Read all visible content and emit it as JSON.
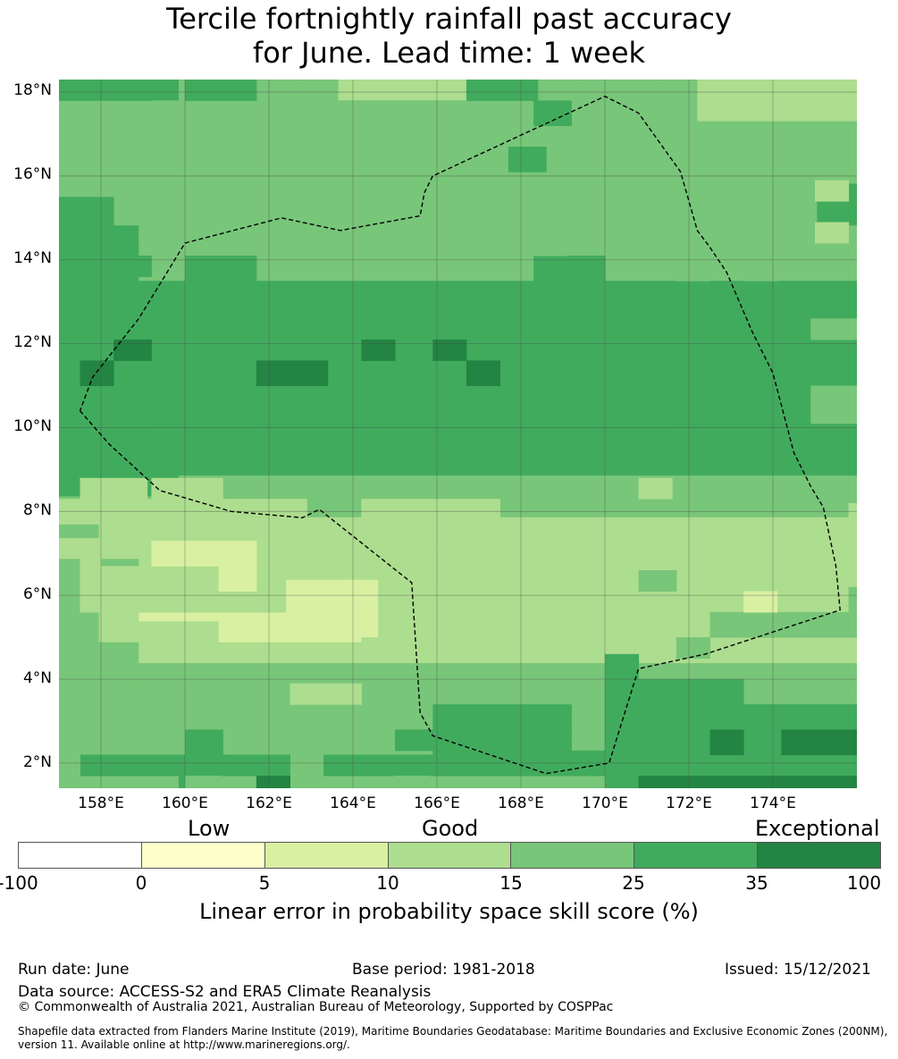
{
  "title_line1": "Tercile fortnightly rainfall past accuracy",
  "title_line2": "for June. Lead time: 1 week",
  "map": {
    "lon_range": [
      157.0,
      176.0
    ],
    "lat_range": [
      1.4,
      18.3
    ],
    "lat_ticks": [
      "18°N",
      "16°N",
      "14°N",
      "12°N",
      "10°N",
      "8°N",
      "6°N",
      "4°N",
      "2°N"
    ],
    "lon_ticks": [
      "158°E",
      "160°E",
      "162°E",
      "164°E",
      "166°E",
      "168°E",
      "170°E",
      "172°E",
      "174°E"
    ],
    "grid_lines": true,
    "boundary_style": "dashed",
    "boundary_lonlat": [
      [
        157.5,
        10.4
      ],
      [
        158.2,
        9.6
      ],
      [
        159.4,
        8.5
      ],
      [
        161.1,
        8.0
      ],
      [
        162.8,
        7.85
      ],
      [
        163.2,
        8.05
      ],
      [
        165.4,
        6.3
      ],
      [
        165.6,
        3.2
      ],
      [
        165.9,
        2.65
      ],
      [
        168.6,
        1.75
      ],
      [
        170.1,
        2.0
      ],
      [
        170.8,
        4.25
      ],
      [
        172.4,
        4.6
      ],
      [
        175.6,
        5.65
      ],
      [
        175.5,
        6.7
      ],
      [
        175.2,
        8.1
      ],
      [
        174.9,
        8.6
      ],
      [
        174.5,
        9.4
      ],
      [
        174.0,
        11.3
      ],
      [
        173.5,
        12.3
      ],
      [
        172.9,
        13.7
      ],
      [
        172.5,
        14.3
      ],
      [
        172.2,
        14.7
      ],
      [
        171.8,
        16.1
      ],
      [
        170.8,
        17.5
      ],
      [
        170.0,
        17.9
      ],
      [
        165.9,
        16.0
      ],
      [
        165.7,
        15.6
      ],
      [
        165.6,
        15.05
      ],
      [
        163.7,
        14.7
      ],
      [
        162.3,
        15.0
      ],
      [
        160.0,
        14.4
      ],
      [
        158.9,
        12.6
      ],
      [
        157.8,
        11.2
      ],
      [
        157.5,
        10.4
      ]
    ],
    "skill_grid": [
      "33322221111222221111",
      "22222222222222221111",
      "22222222222222222222",
      "22222222222222222222",
      "22222222222222222222",
      "22222222222222222223",
      "22222222222222222223",
      "33222222222222222222",
      "33222222222222222222",
      "33222222222222222222",
      "33333333333333333333",
      "33333333333333333333",
      "33333333333333333333",
      "33333333333333333333",
      "33333333333333333333",
      "34433333333333333333",
      "34333333333333333333",
      "33333333333333333333",
      "33333333333333333333",
      "33322222222222222222",
      "22222222222222222222",
      "21111111111111111111",
      "11111111111111111111",
      "22111111111111111111",
      "20000000111111111111",
      "21000000111111111111",
      "21110000111111111111",
      "22111111111111111111",
      "22222222222222222222",
      "22222222222222222222",
      "22222222222222222222",
      "22222222222222222222",
      "22222222222222222222",
      "22232222222222223333"
    ],
    "skill_overrides": [
      {
        "lon": 157.0,
        "lat": 17.8,
        "w": 2.2,
        "h": 0.5,
        "level": 3
      },
      {
        "lon": 160.0,
        "lat": 17.8,
        "w": 1.7,
        "h": 0.5,
        "level": 3
      },
      {
        "lon": 166.7,
        "lat": 17.8,
        "w": 1.7,
        "h": 0.5,
        "level": 3
      },
      {
        "lon": 168.3,
        "lat": 17.2,
        "w": 0.9,
        "h": 0.6,
        "level": 3
      },
      {
        "lon": 167.7,
        "lat": 16.1,
        "w": 0.9,
        "h": 0.6,
        "level": 3
      },
      {
        "lon": 157.0,
        "lat": 14.1,
        "w": 1.3,
        "h": 1.4,
        "level": 3
      },
      {
        "lon": 157.0,
        "lat": 13.6,
        "w": 2.2,
        "h": 0.5,
        "level": 3
      },
      {
        "lon": 157.0,
        "lat": 13.0,
        "w": 1.3,
        "h": 0.6,
        "level": 3
      },
      {
        "lon": 160.0,
        "lat": 13.5,
        "w": 1.7,
        "h": 0.6,
        "level": 3
      },
      {
        "lon": 168.3,
        "lat": 13.5,
        "w": 1.7,
        "h": 0.6,
        "level": 3
      },
      {
        "lon": 157.0,
        "lat": 13.0,
        "w": 19.0,
        "h": 0.5,
        "level": 3
      },
      {
        "lon": 157.0,
        "lat": 10.1,
        "w": 19.0,
        "h": 2.9,
        "level": 3
      },
      {
        "lon": 157.0,
        "lat": 9.5,
        "w": 2.2,
        "h": 0.6,
        "level": 3
      },
      {
        "lon": 160.0,
        "lat": 9.5,
        "w": 1.7,
        "h": 0.6,
        "level": 3
      },
      {
        "lon": 165.9,
        "lat": 9.5,
        "w": 5.8,
        "h": 0.6,
        "level": 3
      },
      {
        "lon": 168.3,
        "lat": 8.9,
        "w": 1.7,
        "h": 0.6,
        "level": 3
      },
      {
        "lon": 174.9,
        "lat": 12.1,
        "w": 1.1,
        "h": 0.5,
        "level": 2
      },
      {
        "lon": 174.9,
        "lat": 11.0,
        "w": 1.1,
        "h": 0.6,
        "level": 3
      },
      {
        "lon": 174.9,
        "lat": 10.1,
        "w": 1.1,
        "h": 0.9,
        "level": 2
      },
      {
        "lon": 157.5,
        "lat": 11.0,
        "w": 0.8,
        "h": 0.6,
        "level": 4
      },
      {
        "lon": 158.3,
        "lat": 11.6,
        "w": 0.9,
        "h": 0.5,
        "level": 4
      },
      {
        "lon": 161.7,
        "lat": 11.0,
        "w": 1.7,
        "h": 0.6,
        "level": 4
      },
      {
        "lon": 164.2,
        "lat": 11.6,
        "w": 0.8,
        "h": 0.5,
        "level": 4
      },
      {
        "lon": 165.9,
        "lat": 11.6,
        "w": 0.8,
        "h": 0.5,
        "level": 4
      },
      {
        "lon": 166.7,
        "lat": 11.0,
        "w": 0.8,
        "h": 0.6,
        "level": 4
      },
      {
        "lon": 168.3,
        "lat": 14.1,
        "w": 0.8,
        "h": 0.5,
        "level": 2
      },
      {
        "lon": 171.7,
        "lat": 13.5,
        "w": 0.8,
        "h": 0.6,
        "level": 2
      },
      {
        "lon": 173.3,
        "lat": 13.5,
        "w": 0.8,
        "h": 0.6,
        "level": 2
      },
      {
        "lon": 175.0,
        "lat": 15.4,
        "w": 0.8,
        "h": 0.5,
        "level": 1
      },
      {
        "lon": 175.0,
        "lat": 14.4,
        "w": 0.8,
        "h": 0.5,
        "level": 1
      },
      {
        "lon": 175.8,
        "lat": 17.8,
        "w": 0.2,
        "h": 0.5,
        "level": 1
      },
      {
        "lon": 160.8,
        "lat": 6.7,
        "w": 0.2,
        "h": 0.0,
        "level": 0
      },
      {
        "lon": 158.3,
        "lat": 6.1,
        "w": 2.5,
        "h": 0.5,
        "level": 1
      },
      {
        "lon": 157.5,
        "lat": 6.6,
        "w": 0.5,
        "h": 0.6,
        "level": 1
      },
      {
        "lon": 161.7,
        "lat": 6.7,
        "w": 1.7,
        "h": 0.5,
        "level": 1
      },
      {
        "lon": 165.0,
        "lat": 6.1,
        "w": 3.3,
        "h": 1.1,
        "level": 1
      },
      {
        "lon": 164.2,
        "lat": 4.5,
        "w": 2.5,
        "h": 0.5,
        "level": 1
      },
      {
        "lon": 165.0,
        "lat": 5.0,
        "w": 4.2,
        "h": 0.6,
        "level": 1
      },
      {
        "lon": 167.5,
        "lat": 5.6,
        "w": 3.3,
        "h": 0.5,
        "level": 1
      },
      {
        "lon": 169.2,
        "lat": 6.1,
        "w": 1.7,
        "h": 0.6,
        "level": 1
      },
      {
        "lon": 171.7,
        "lat": 5.0,
        "w": 3.3,
        "h": 1.7,
        "level": 1
      },
      {
        "lon": 170.8,
        "lat": 6.1,
        "w": 4.2,
        "h": 1.1,
        "level": 1
      },
      {
        "lon": 172.5,
        "lat": 5.6,
        "w": 3.3,
        "h": 0.5,
        "level": 1
      },
      {
        "lon": 157.5,
        "lat": 5.6,
        "w": 4.9,
        "h": 1.1,
        "level": 1
      },
      {
        "lon": 159.2,
        "lat": 6.6,
        "w": 1.7,
        "h": 0.6,
        "level": 1
      },
      {
        "lon": 157.5,
        "lat": 8.3,
        "w": 1.6,
        "h": 0.5,
        "level": 1
      },
      {
        "lon": 157.0,
        "lat": 7.7,
        "w": 5.9,
        "h": 0.6,
        "level": 1
      },
      {
        "lon": 158.3,
        "lat": 7.2,
        "w": 2.5,
        "h": 0.5,
        "level": 1
      },
      {
        "lon": 159.2,
        "lat": 8.3,
        "w": 1.7,
        "h": 0.5,
        "level": 1
      },
      {
        "lon": 160.8,
        "lat": 7.2,
        "w": 2.5,
        "h": 0.6,
        "level": 1
      },
      {
        "lon": 164.2,
        "lat": 7.2,
        "w": 3.3,
        "h": 1.1,
        "level": 1
      },
      {
        "lon": 165.8,
        "lat": 7.7,
        "w": 1.7,
        "h": 0.5,
        "level": 1
      },
      {
        "lon": 165.8,
        "lat": 6.6,
        "w": 1.7,
        "h": 0.6,
        "level": 1
      },
      {
        "lon": 168.3,
        "lat": 6.6,
        "w": 0.9,
        "h": 0.5,
        "level": 1
      },
      {
        "lon": 169.2,
        "lat": 6.1,
        "w": 0.8,
        "h": 0.6,
        "level": 1
      },
      {
        "lon": 171.7,
        "lat": 4.5,
        "w": 0.8,
        "h": 0.5,
        "level": 2
      },
      {
        "lon": 172.5,
        "lat": 5.0,
        "w": 2.5,
        "h": 0.6,
        "level": 2
      },
      {
        "lon": 175.0,
        "lat": 5.0,
        "w": 1.0,
        "h": 0.6,
        "level": 2
      },
      {
        "lon": 170.8,
        "lat": 6.1,
        "w": 0.9,
        "h": 0.5,
        "level": 2
      },
      {
        "lon": 175.8,
        "lat": 5.6,
        "w": 0.2,
        "h": 0.6,
        "level": 2
      },
      {
        "lon": 175.8,
        "lat": 7.7,
        "w": 0.2,
        "h": 0.5,
        "level": 1
      },
      {
        "lon": 170.8,
        "lat": 8.3,
        "w": 0.8,
        "h": 0.5,
        "level": 1
      },
      {
        "lon": 168.3,
        "lat": 7.2,
        "w": 0.8,
        "h": 0.5,
        "level": 1
      },
      {
        "lon": 159.2,
        "lat": 7.7,
        "w": 0.8,
        "h": 0.5,
        "level": 1
      },
      {
        "lon": 159.2,
        "lat": 6.7,
        "w": 2.5,
        "h": 0.6,
        "level": 0
      },
      {
        "lon": 160.8,
        "lat": 6.1,
        "w": 0.9,
        "h": 0.6,
        "level": 0
      },
      {
        "lon": 173.3,
        "lat": 5.6,
        "w": 0.8,
        "h": 0.5,
        "level": 0
      },
      {
        "lon": 162.5,
        "lat": 3.4,
        "w": 1.7,
        "h": 0.5,
        "level": 1
      },
      {
        "lon": 171.7,
        "lat": 2.8,
        "w": 0.8,
        "h": 0.6,
        "level": 1
      },
      {
        "lon": 165.9,
        "lat": 2.8,
        "w": 3.3,
        "h": 0.6,
        "level": 3
      },
      {
        "lon": 165.0,
        "lat": 2.3,
        "w": 4.2,
        "h": 0.5,
        "level": 3
      },
      {
        "lon": 165.9,
        "lat": 1.7,
        "w": 4.1,
        "h": 0.6,
        "level": 3
      },
      {
        "lon": 170.0,
        "lat": 1.4,
        "w": 0.8,
        "h": 3.2,
        "level": 3
      },
      {
        "lon": 170.8,
        "lat": 3.4,
        "w": 2.5,
        "h": 0.6,
        "level": 3
      },
      {
        "lon": 170.8,
        "lat": 1.4,
        "w": 5.2,
        "h": 2.0,
        "level": 3
      },
      {
        "lon": 172.5,
        "lat": 2.8,
        "w": 3.5,
        "h": 0.6,
        "level": 3
      },
      {
        "lon": 160.0,
        "lat": 2.2,
        "w": 0.9,
        "h": 0.6,
        "level": 3
      },
      {
        "lon": 157.5,
        "lat": 1.7,
        "w": 3.4,
        "h": 0.5,
        "level": 3
      },
      {
        "lon": 160.8,
        "lat": 1.7,
        "w": 1.7,
        "h": 0.5,
        "level": 3
      },
      {
        "lon": 163.3,
        "lat": 1.7,
        "w": 2.6,
        "h": 0.5,
        "level": 3
      },
      {
        "lon": 172.5,
        "lat": 2.2,
        "w": 0.8,
        "h": 0.6,
        "level": 4
      },
      {
        "lon": 174.2,
        "lat": 2.2,
        "w": 1.8,
        "h": 0.6,
        "level": 4
      },
      {
        "lon": 170.8,
        "lat": 1.4,
        "w": 5.2,
        "h": 0.3,
        "level": 4
      },
      {
        "lon": 161.7,
        "lat": 1.4,
        "w": 0.8,
        "h": 0.3,
        "level": 4
      },
      {
        "lon": 160.0,
        "lat": 1.4,
        "w": 0.8,
        "h": 0.3,
        "level": 2
      },
      {
        "lon": 165.0,
        "lat": 1.4,
        "w": 0.8,
        "h": 0.3,
        "level": 2
      },
      {
        "lon": 157.0,
        "lat": 1.4,
        "w": 0.5,
        "h": 0.8,
        "level": 2
      }
    ]
  },
  "colorbar": {
    "category_low": "Low",
    "category_good": "Good",
    "category_exceptional": "Exceptional",
    "colors": [
      "#ffffff",
      "#ffffcc",
      "#d9f0a3",
      "#addd8e",
      "#78c679",
      "#41ab5d",
      "#238443"
    ],
    "ticks": [
      "-100",
      "0",
      "5",
      "10",
      "15",
      "25",
      "35",
      "100"
    ],
    "label": "Linear error in probability space skill score (%)"
  },
  "level_colors": [
    "#d9f0a3",
    "#addd8e",
    "#78c679",
    "#41ab5d",
    "#238443"
  ],
  "footer": {
    "run_date": "Run date: June",
    "base_period": "Base period: 1981-2018",
    "issued": "Issued: 15/12/2021",
    "data_source": "Data source: ACCESS-S2 and ERA5 Climate Reanalysis",
    "copyright": "© Commonwealth of Australia 2021, Australian Bureau of Meteorology, Supported by COSPPac",
    "shapefile_line1": "Shapefile data extracted from Flanders Marine Institute (2019), Maritime Boundaries Geodatabase: Maritime Boundaries and Exclusive Economic Zones (200NM),",
    "shapefile_line2": "version 11. Available online at http://www.marineregions.org/."
  }
}
